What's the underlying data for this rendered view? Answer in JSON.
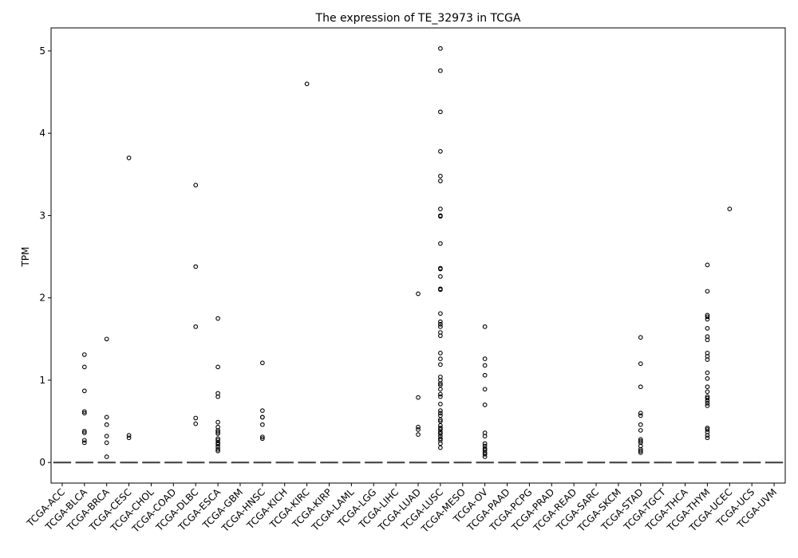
{
  "chart_data": {
    "type": "box",
    "title": "The expression of TE_32973 in TCGA",
    "xlabel": "",
    "ylabel": "TPM",
    "ylim": [
      -0.25,
      5.28
    ],
    "yticks": [
      0,
      1,
      2,
      3,
      4,
      5
    ],
    "grid": false,
    "legend": "none",
    "colors": {
      "box": "#333333",
      "median": "#555555",
      "outlier": "#000000"
    },
    "categories": [
      "TCGA-ACC",
      "TCGA-BLCA",
      "TCGA-BRCA",
      "TCGA-CESC",
      "TCGA-CHOL",
      "TCGA-COAD",
      "TCGA-DLBC",
      "TCGA-ESCA",
      "TCGA-GBM",
      "TCGA-HNSC",
      "TCGA-KICH",
      "TCGA-KIRC",
      "TCGA-KIRP",
      "TCGA-LAML",
      "TCGA-LGG",
      "TCGA-LIHC",
      "TCGA-LUAD",
      "TCGA-LUSC",
      "TCGA-MESO",
      "TCGA-OV",
      "TCGA-PAAD",
      "TCGA-PCPG",
      "TCGA-PRAD",
      "TCGA-READ",
      "TCGA-SARC",
      "TCGA-SKCM",
      "TCGA-STAD",
      "TCGA-TGCT",
      "TCGA-THCA",
      "TCGA-THYM",
      "TCGA-UCEC",
      "TCGA-UCS",
      "TCGA-UVM"
    ],
    "median": [
      0,
      0,
      0,
      0,
      0,
      0,
      0,
      0,
      0,
      0,
      0,
      0,
      0,
      0,
      0,
      0,
      0,
      0,
      0,
      0,
      0,
      0,
      0,
      0,
      0,
      0,
      0,
      0,
      0,
      0,
      0,
      0,
      0
    ],
    "outliers": [
      [],
      [
        1.31,
        1.16,
        0.87,
        0.62,
        0.6,
        0.38,
        0.36,
        0.27,
        0.24
      ],
      [
        1.5,
        0.55,
        0.46,
        0.32,
        0.24,
        0.07
      ],
      [
        3.7,
        0.33,
        0.3
      ],
      [],
      [],
      [
        3.37,
        2.38,
        1.65,
        0.54,
        0.47
      ],
      [
        1.75,
        1.16,
        0.84,
        0.8,
        0.49,
        0.43,
        0.39,
        0.37,
        0.35,
        0.29,
        0.27,
        0.24,
        0.22,
        0.19,
        0.16,
        0.14
      ],
      [],
      [
        1.21,
        0.63,
        0.55,
        0.55,
        0.46,
        0.31,
        0.29
      ],
      [],
      [
        4.6
      ],
      [],
      [],
      [],
      [],
      [
        2.05,
        0.79,
        0.43,
        0.4,
        0.34
      ],
      [
        5.03,
        4.76,
        4.26,
        3.78,
        3.48,
        3.42,
        3.08,
        3.0,
        2.99,
        2.66,
        2.36,
        2.35,
        2.26,
        2.11,
        2.1,
        1.81,
        1.71,
        1.68,
        1.65,
        1.58,
        1.54,
        1.33,
        1.26,
        1.19,
        1.04,
        1.0,
        0.96,
        0.94,
        0.89,
        0.83,
        0.8,
        0.71,
        0.63,
        0.6,
        0.57,
        0.52,
        0.5,
        0.45,
        0.42,
        0.4,
        0.37,
        0.35,
        0.32,
        0.29,
        0.27,
        0.23,
        0.18
      ],
      [],
      [
        1.65,
        1.26,
        1.18,
        1.06,
        0.89,
        0.7,
        0.36,
        0.32,
        0.23,
        0.2,
        0.17,
        0.15,
        0.12,
        0.1,
        0.07
      ],
      [],
      [],
      [],
      [],
      [],
      [],
      [
        1.52,
        1.2,
        0.92,
        0.6,
        0.57,
        0.46,
        0.39,
        0.28,
        0.26,
        0.24,
        0.2,
        0.16,
        0.14,
        0.12
      ],
      [],
      [],
      [
        2.4,
        2.08,
        1.79,
        1.77,
        1.74,
        1.63,
        1.53,
        1.49,
        1.33,
        1.29,
        1.25,
        1.09,
        1.02,
        0.92,
        0.86,
        0.8,
        0.78,
        0.75,
        0.72,
        0.69,
        0.42,
        0.4,
        0.37,
        0.33,
        0.3
      ],
      [
        3.08
      ],
      [],
      []
    ]
  }
}
